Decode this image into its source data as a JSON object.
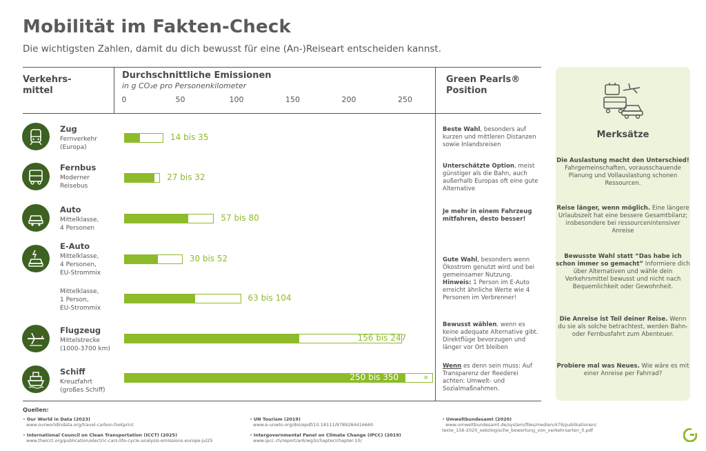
{
  "header": {
    "title": "Mobilität im Fakten-Check",
    "subtitle": "Die wichtigsten Zahlen, damit du dich bewusst für eine (An-)Reiseart entscheiden kannst."
  },
  "columns": {
    "mode": "Verkehrs-\nmittel",
    "emissions": "Durchschnittliche Emissionen",
    "emissions_unit": "in g CO₂e pro Personenkilometer",
    "position": "Green Pearls®\nPosition"
  },
  "modes": [
    {
      "name": "Zug",
      "desc": "Fernverkehr\n(Europa)",
      "icon": "train-icon"
    },
    {
      "name": "Fernbus",
      "desc": "Moderner\nReisebus",
      "icon": "bus-icon"
    },
    {
      "name": "Auto",
      "desc": "Mittelklasse,\n4 Personen",
      "icon": "car-icon"
    },
    {
      "name": "E-Auto",
      "desc": "Mittelklasse,\n4 Personen,\nEU-Strommix",
      "icon": "electric-car-icon"
    },
    {
      "name": "",
      "desc": "Mittelklasse,\n1 Person,\nEU-Strommix",
      "icon": ""
    },
    {
      "name": "Flugzeug",
      "desc": "Mittelstrecke\n(1000-3700 km)",
      "icon": "airplane-icon"
    },
    {
      "name": "Schiff",
      "desc": "Kreuzfahrt\n(großes Schiff)",
      "icon": "ship-icon"
    }
  ],
  "chart_data": {
    "type": "bar",
    "orientation": "horizontal",
    "xlim": [
      0,
      260
    ],
    "ticks": [
      0,
      50,
      100,
      150,
      200,
      250
    ],
    "categories": [
      "Zug",
      "Fernbus",
      "Auto",
      "E-Auto (4 Personen)",
      "E-Auto (1 Person)",
      "Flugzeug",
      "Schiff"
    ],
    "series": [
      {
        "values_low": [
          14,
          27,
          57,
          30,
          63,
          156,
          250
        ],
        "values_high": [
          35,
          32,
          80,
          52,
          104,
          247,
          350
        ]
      }
    ],
    "labels": [
      "14 bis 35",
      "27 bis 32",
      "57 bis 80",
      "30 bis 52",
      "63 bis 104",
      "156 bis 247",
      "250 bis 350"
    ],
    "overflow_marker": "»",
    "colors": {
      "fill": "#8dbb2a",
      "outline": "#8dbb2a"
    }
  },
  "positions": [
    {
      "bold": "Beste Wahl",
      "text": ", besonders auf kurzen und mittleren Distanzen sowie Inlandsreisen"
    },
    {
      "bold": "Unterschätzte Option",
      "text": ", meist günstiger als die Bahn, auch außerhalb Europas oft eine gute Alternative"
    },
    {
      "bold": "Je mehr in einem Fahrzeug mitfahren, desto besser!",
      "text": ""
    },
    {
      "bold": "Gute Wahl",
      "text": ", besonders wenn Ökostrom genutzt wird und bei gemeinsamer Nutzung.",
      "bold2": "Hinweis:",
      "text2": " 1 Person im E-Auto erreicht ähnliche Werte wie 4 Personen im Verbrenner!"
    },
    {
      "bold": "Bewusst wählen",
      "text": ", wenn es keine adequate Alternative gibt. Direktflüge bevorzugen und länger vor Ort bleiben"
    },
    {
      "bold": "Wenn",
      "text": " es denn sein muss: Auf Transparenz der Reederei achten: Umwelt- und Sozialmaßnahmen."
    }
  ],
  "panel": {
    "icon": "travel-icon",
    "title": "Merksätze",
    "tips": [
      {
        "bold": "Die Auslastung macht den Unterschied!",
        "text": " Fahrgemeinschaften, vorausschauende Planung und Vollauslastung schonen Ressourcen."
      },
      {
        "bold": "Reise länger, wenn möglich.",
        "text": " Eine längere Urlaubszeit hat eine bessere Gesamtbilanz; insbesondere bei ressourcenintensiver Anreise"
      },
      {
        "bold": "Bewusste Wahl statt “Das habe ich schon immer so gemacht”",
        "text": " Informiere dich über Alternativen und wähle dein Verkehrsmittel bewusst und nicht nach Bequemlichkeit oder Gewohnheit."
      },
      {
        "bold": "Die Anreise ist Teil deiner Reise.",
        "text": " Wenn du sie als solche betrachtest, werden Bahn- oder Fernbusfahrt zum Abenteuer."
      },
      {
        "bold": "Probiere mal was Neues.",
        "text": " Wie wäre es mit einer Anreise per Fahrrad?"
      }
    ]
  },
  "sources": {
    "title": "Quellen:",
    "items": [
      {
        "name": "Our World in Data (2023)",
        "url": "www.ourworldindata.org/travel-carbon-footprint"
      },
      {
        "name": "International Council on Clean Transportation (ICCT) (2025)",
        "url": "www.theicct.org/publication/electric-cars-life-cycle-analysis-emissions-europe-jul25"
      },
      {
        "name": "UN Tourism (2019)",
        "url": "www.e-unwto.org/doi/epdf/10.18111/9789284416660"
      },
      {
        "name": "Intergovernmental Panel on Climate Change (IPCC) (2019)",
        "url": "www.ipcc.ch/report/ar6/wg3/chapter/chapter-10/"
      },
      {
        "name": "Umweltbundesamt (2020)",
        "url": "www.umweltbundesamt.de/system/files/medien/479/publikationen/\ntexte_156-2020_oekologische_bewertung_von_verkehrsarten_0.pdf"
      }
    ]
  },
  "brand": {
    "logo": "green-pearls-logo",
    "color": "#8dbb2a"
  }
}
